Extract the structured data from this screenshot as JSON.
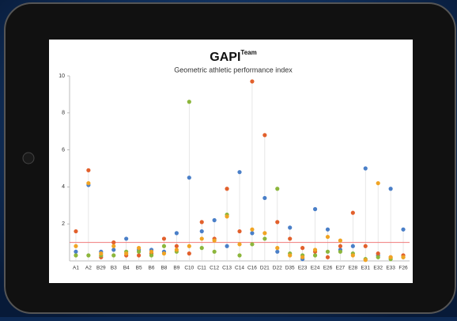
{
  "chart_data": {
    "type": "dot-strip",
    "title": "GAPI",
    "title_superscript": "Team",
    "subtitle": "Geometric athletic performance index",
    "categories": [
      "A1",
      "A2",
      "B29",
      "B3",
      "B4",
      "B5",
      "B6",
      "B8",
      "B9",
      "C10",
      "C11",
      "C12",
      "C13",
      "C14",
      "C16",
      "D21",
      "D22",
      "D35",
      "E23",
      "E24",
      "E26",
      "E27",
      "E28",
      "E31",
      "E32",
      "E33",
      "F26"
    ],
    "series": [
      {
        "color": "#4a7fc8",
        "values": [
          0.5,
          4.1,
          0.5,
          0.6,
          1.2,
          0.6,
          0.6,
          0.5,
          1.5,
          4.5,
          1.6,
          2.2,
          0.8,
          4.8,
          1.5,
          3.4,
          0.5,
          1.8,
          0.1,
          2.8,
          1.7,
          0.6,
          0.8,
          5.0,
          0.3,
          3.9,
          1.7
        ]
      },
      {
        "color": "#e2602c",
        "values": [
          1.6,
          4.9,
          0.2,
          1.0,
          0.3,
          0.3,
          0.4,
          1.2,
          0.8,
          0.4,
          2.1,
          1.2,
          3.9,
          1.6,
          9.7,
          6.8,
          2.1,
          1.2,
          0.7,
          0.5,
          0.2,
          0.8,
          2.6,
          0.8,
          0.4,
          0.2,
          0.3
        ]
      },
      {
        "color": "#8cb63c",
        "values": [
          0.3,
          0.3,
          0.3,
          0.3,
          0.5,
          0.5,
          0.3,
          0.8,
          0.5,
          8.6,
          0.7,
          0.5,
          2.5,
          0.3,
          0.9,
          1.2,
          3.9,
          0.4,
          0.3,
          0.3,
          0.5,
          0.5,
          0.4,
          0.1,
          0.2,
          0.1,
          0.2
        ]
      },
      {
        "color": "#f0a424",
        "values": [
          0.8,
          4.2,
          0.4,
          0.8,
          0.4,
          0.7,
          0.5,
          0.4,
          0.6,
          0.8,
          1.2,
          1.1,
          2.4,
          0.9,
          1.7,
          1.5,
          0.7,
          0.3,
          0.2,
          0.6,
          1.3,
          1.1,
          0.3,
          0.05,
          4.2,
          0.2,
          0.2
        ]
      }
    ],
    "reference_line": {
      "value": 1,
      "color": "#f07a7a"
    },
    "ylim": [
      0,
      10
    ],
    "yticks": [
      2,
      4,
      6,
      8,
      10
    ]
  }
}
